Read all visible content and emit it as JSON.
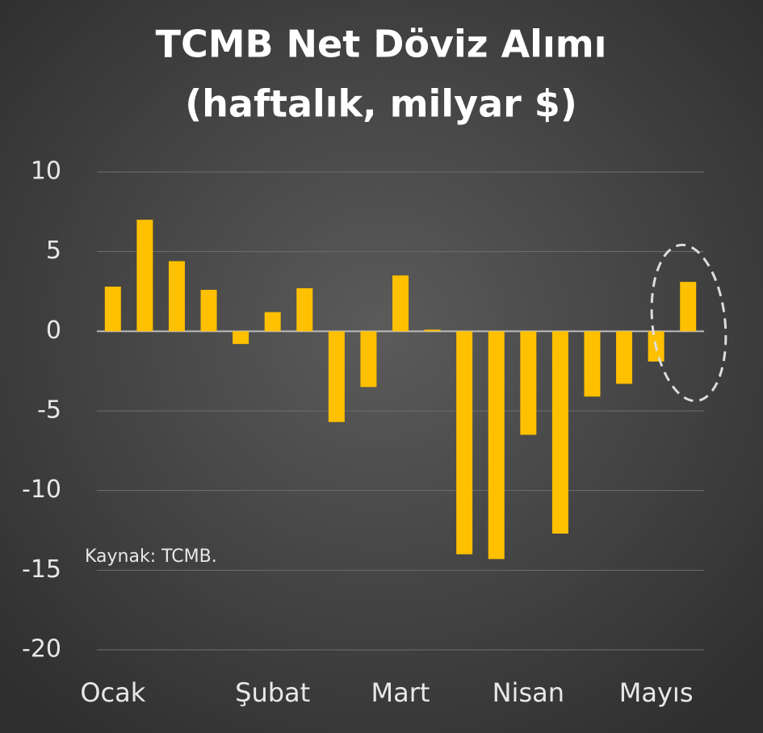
{
  "chart_data": {
    "type": "bar",
    "title": "TCMB Net Döviz Alımı",
    "subtitle": "(haftalık, milyar $)",
    "annotation": "Kaynak: TCMB.",
    "categories": [
      "Ocak",
      null,
      null,
      null,
      null,
      "Şubat",
      null,
      null,
      null,
      "Mart",
      null,
      null,
      null,
      "Nisan",
      null,
      null,
      null,
      "Mayıs",
      null
    ],
    "values": [
      2.8,
      7.0,
      4.4,
      2.6,
      -0.8,
      1.2,
      2.7,
      -5.7,
      -3.5,
      3.5,
      0.1,
      -14.0,
      -14.3,
      -6.5,
      -12.7,
      -4.1,
      -3.3,
      -1.9,
      3.1
    ],
    "color": "#ffc000",
    "ylim": [
      -20,
      10
    ],
    "yticks": [
      -20,
      -15,
      -10,
      -5,
      0,
      5,
      10
    ],
    "grid": true
  }
}
